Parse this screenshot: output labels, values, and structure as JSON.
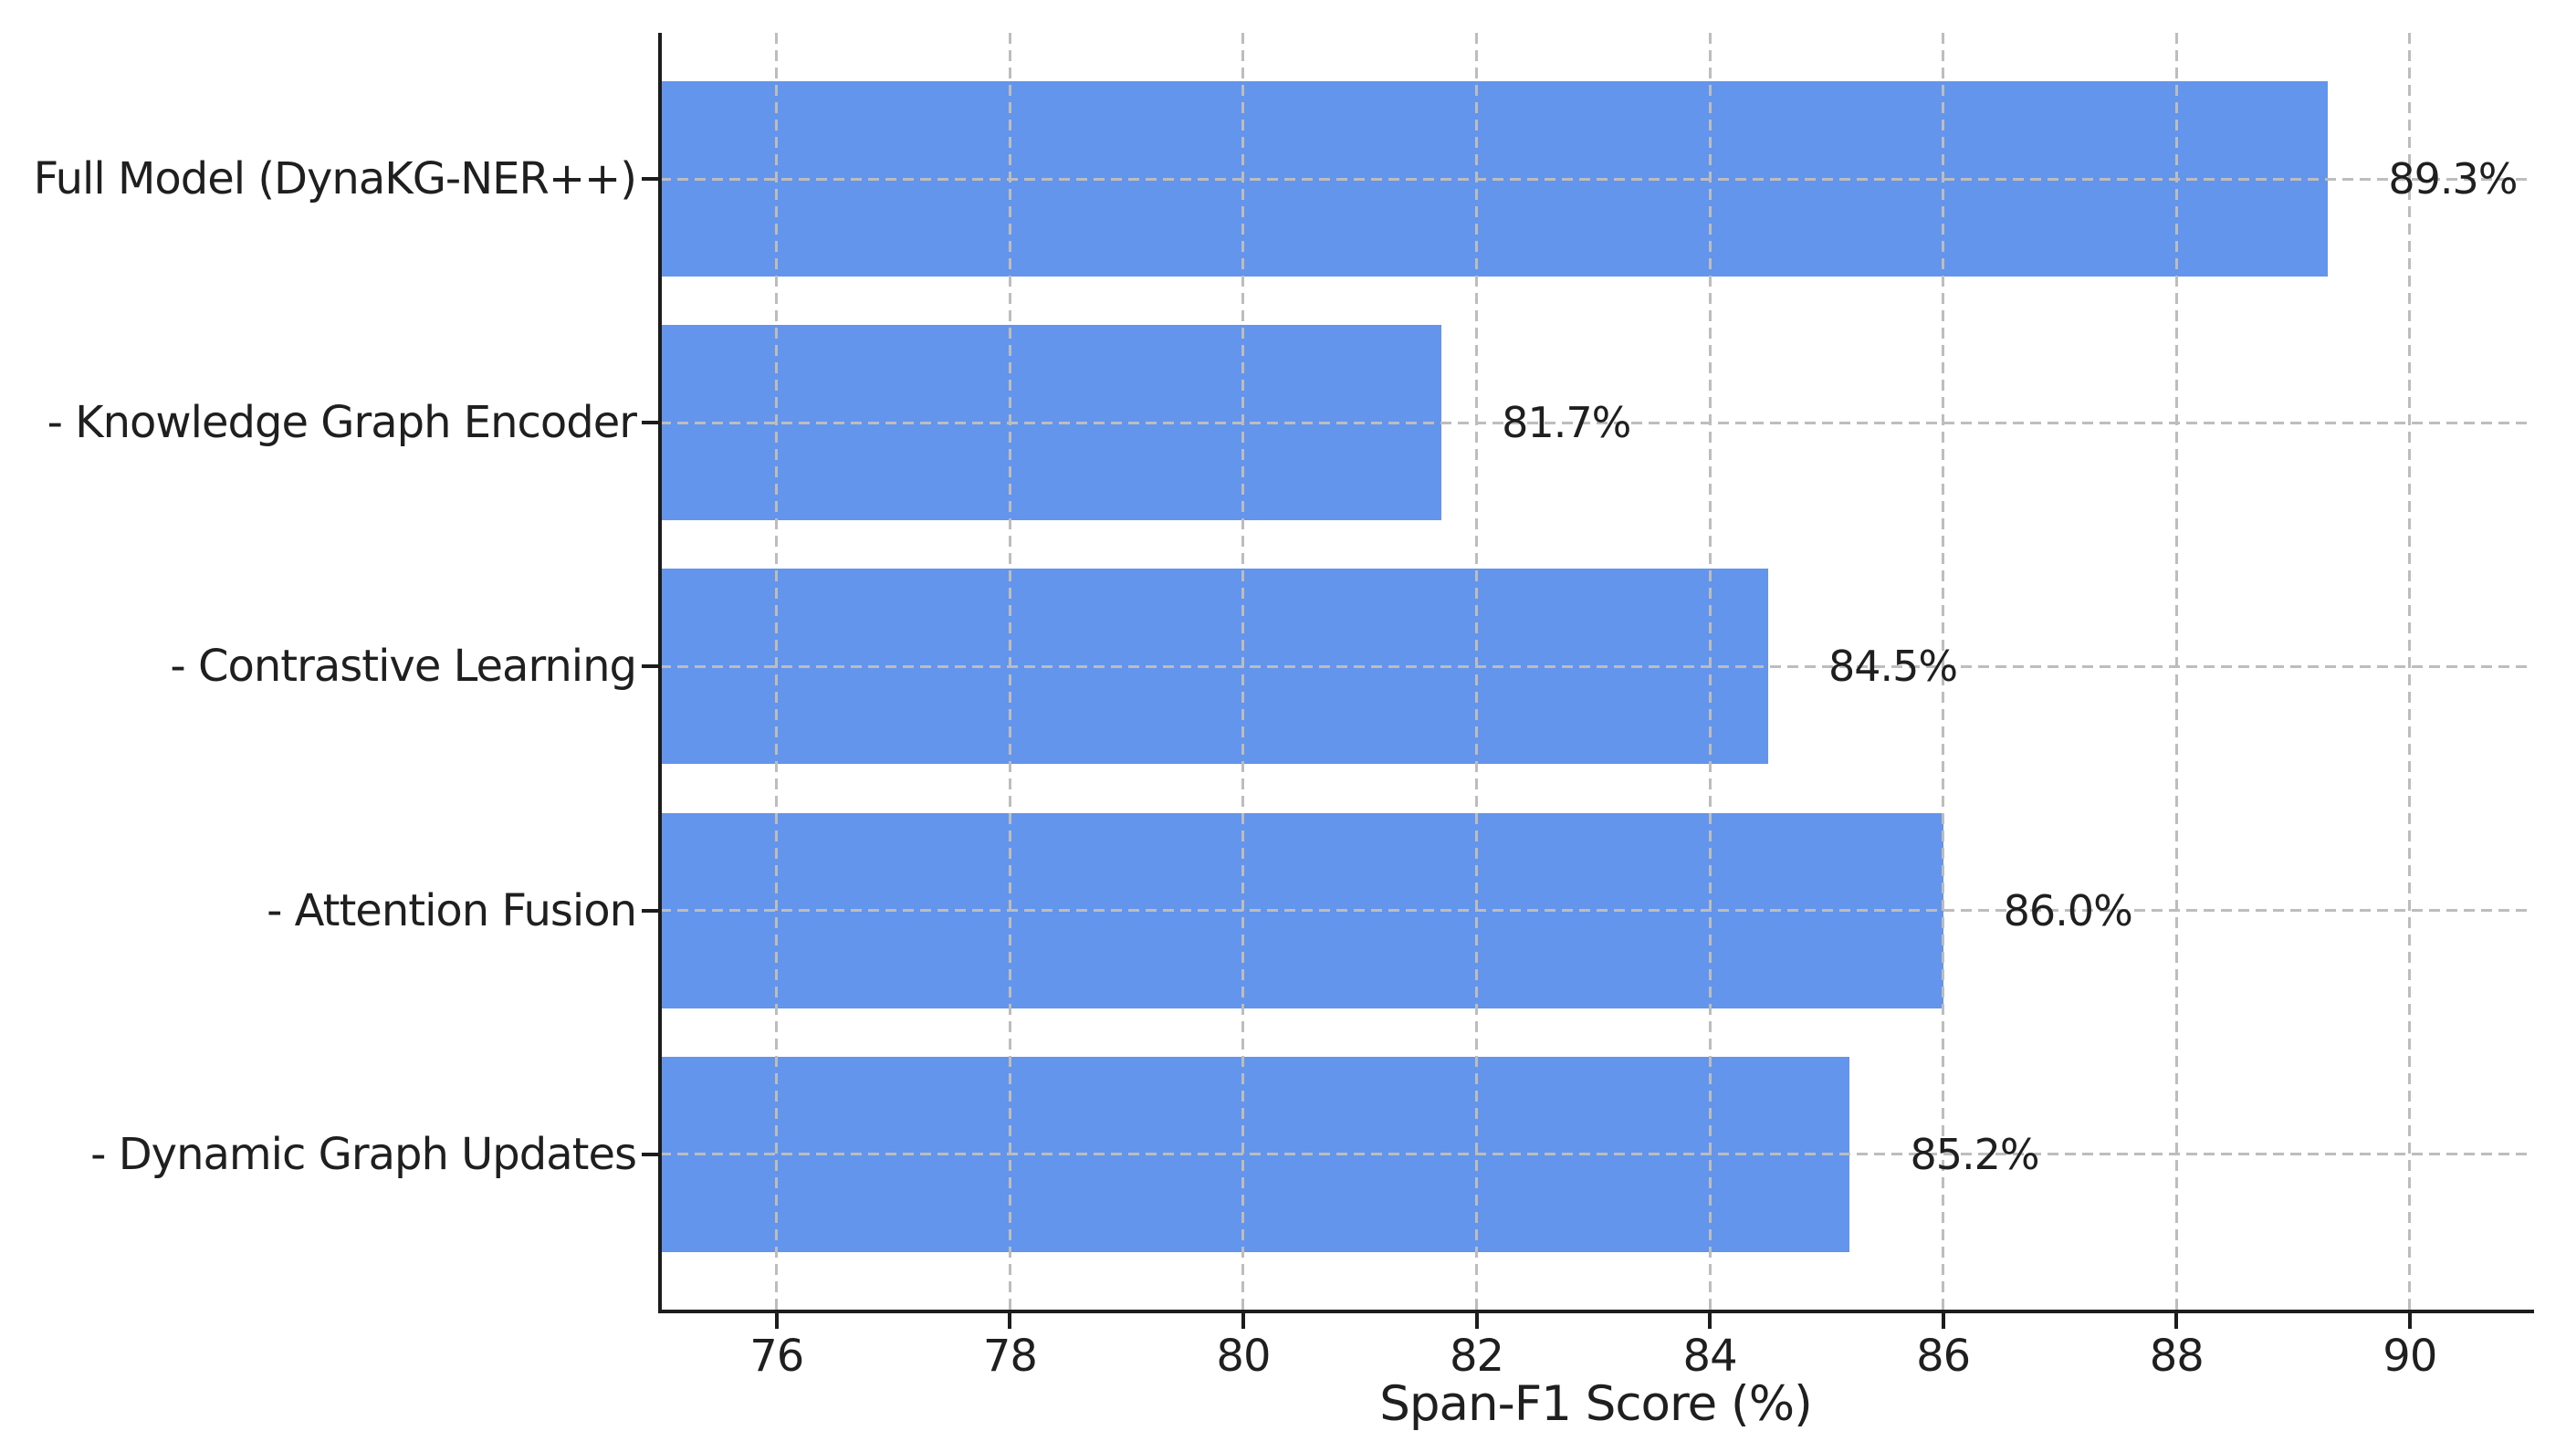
{
  "figure": {
    "background": "#ffffff"
  },
  "chart_data": {
    "type": "bar",
    "orientation": "horizontal",
    "title": "",
    "xlabel": "Span-F1 Score (%)",
    "ylabel": "",
    "categories": [
      "Full Model (DynaKG-NER++)",
      "- Knowledge Graph Encoder",
      "- Contrastive Learning",
      "- Attention Fusion",
      "- Dynamic Graph Updates"
    ],
    "values": [
      89.3,
      81.7,
      84.5,
      86.0,
      85.2
    ],
    "value_labels": [
      "89.3%",
      "81.7%",
      "84.5%",
      "86.0%",
      "85.2%"
    ],
    "xticks": [
      76,
      78,
      80,
      82,
      84,
      86,
      88,
      90
    ],
    "xlim": [
      75,
      91.05
    ],
    "bar_color": "#6495ED",
    "grid": {
      "show": true,
      "style": "dashed",
      "color": "#bdbdbd",
      "axes": "both",
      "above_bars": true
    },
    "spine_color": "#1c1c1c",
    "text_color": "#1f1f1f",
    "spines_visible": [
      "left",
      "bottom"
    ],
    "legend": null
  }
}
